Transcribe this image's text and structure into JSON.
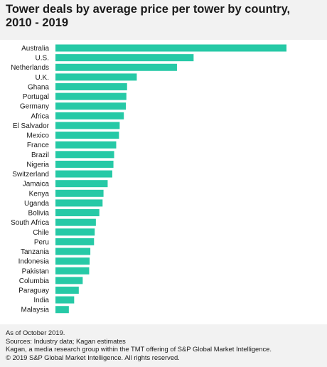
{
  "title_line1": "Tower deals by average price per tower by country,",
  "title_line2": "2010 - 2019",
  "footnotes": [
    "As of October 2019.",
    "Sources: Industry data; Kagan estimates",
    "Kagan, a media research group within the TMT offering of S&P Global Market Intelligence.",
    "© 2019 S&P Global Market Intelligence. All rights reserved."
  ],
  "colors": {
    "bar": "#26c9a6",
    "background": "#f2f2f2",
    "plot_background": "#ffffff"
  },
  "chart_data": {
    "type": "bar",
    "orientation": "horizontal",
    "title": "Tower deals by average price per tower by country, 2010 - 2019",
    "xlabel": "",
    "ylabel": "",
    "grid": false,
    "legend": "none",
    "categories": [
      "Australia",
      "U.S.",
      "Netherlands",
      "U.K.",
      "Ghana",
      "Portugal",
      "Germany",
      "Africa",
      "El Salvador",
      "Mexico",
      "France",
      "Brazil",
      "Nigeria",
      "Switzerland",
      "Jamaica",
      "Kenya",
      "Uganda",
      "Bolivia",
      "South Africa",
      "Chile",
      "Peru",
      "Tanzania",
      "Indonesia",
      "Pakistan",
      "Columbia",
      "Paraguay",
      "India",
      "Malaysia"
    ],
    "values": [
      100,
      59.8,
      52.6,
      35.2,
      31.0,
      30.7,
      30.5,
      29.6,
      27.8,
      27.5,
      26.3,
      25.4,
      25.1,
      24.6,
      22.6,
      20.8,
      20.4,
      19.0,
      17.5,
      17.0,
      16.7,
      15.1,
      14.8,
      14.6,
      11.8,
      10.1,
      8.1,
      5.8
    ]
  }
}
